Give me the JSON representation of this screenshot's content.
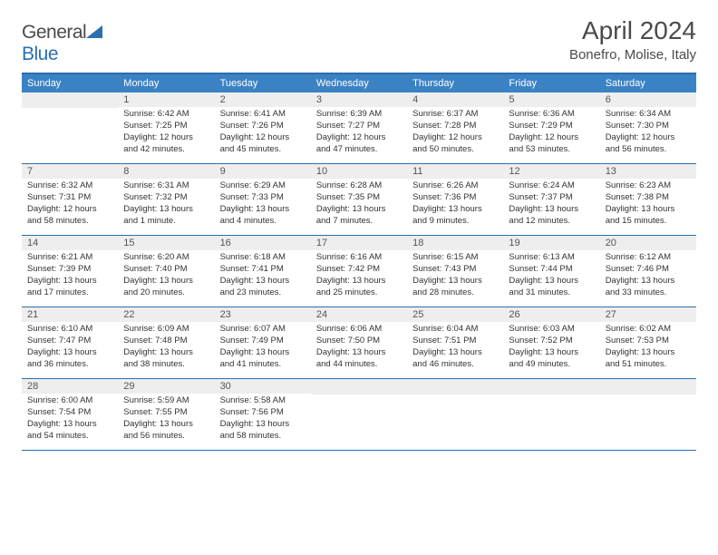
{
  "logo": {
    "text1": "General",
    "text2": "Blue"
  },
  "title": "April 2024",
  "location": "Bonefro, Molise, Italy",
  "colors": {
    "header_bg": "#3b82c4",
    "border": "#2b6fb0",
    "daynum_bg": "#eeeeee",
    "text": "#333333",
    "title_text": "#4a4a4a"
  },
  "weekdays": [
    "Sunday",
    "Monday",
    "Tuesday",
    "Wednesday",
    "Thursday",
    "Friday",
    "Saturday"
  ],
  "weeks": [
    [
      {
        "n": "",
        "sr": "",
        "ss": "",
        "dl": ""
      },
      {
        "n": "1",
        "sr": "Sunrise: 6:42 AM",
        "ss": "Sunset: 7:25 PM",
        "dl": "Daylight: 12 hours and 42 minutes."
      },
      {
        "n": "2",
        "sr": "Sunrise: 6:41 AM",
        "ss": "Sunset: 7:26 PM",
        "dl": "Daylight: 12 hours and 45 minutes."
      },
      {
        "n": "3",
        "sr": "Sunrise: 6:39 AM",
        "ss": "Sunset: 7:27 PM",
        "dl": "Daylight: 12 hours and 47 minutes."
      },
      {
        "n": "4",
        "sr": "Sunrise: 6:37 AM",
        "ss": "Sunset: 7:28 PM",
        "dl": "Daylight: 12 hours and 50 minutes."
      },
      {
        "n": "5",
        "sr": "Sunrise: 6:36 AM",
        "ss": "Sunset: 7:29 PM",
        "dl": "Daylight: 12 hours and 53 minutes."
      },
      {
        "n": "6",
        "sr": "Sunrise: 6:34 AM",
        "ss": "Sunset: 7:30 PM",
        "dl": "Daylight: 12 hours and 56 minutes."
      }
    ],
    [
      {
        "n": "7",
        "sr": "Sunrise: 6:32 AM",
        "ss": "Sunset: 7:31 PM",
        "dl": "Daylight: 12 hours and 58 minutes."
      },
      {
        "n": "8",
        "sr": "Sunrise: 6:31 AM",
        "ss": "Sunset: 7:32 PM",
        "dl": "Daylight: 13 hours and 1 minute."
      },
      {
        "n": "9",
        "sr": "Sunrise: 6:29 AM",
        "ss": "Sunset: 7:33 PM",
        "dl": "Daylight: 13 hours and 4 minutes."
      },
      {
        "n": "10",
        "sr": "Sunrise: 6:28 AM",
        "ss": "Sunset: 7:35 PM",
        "dl": "Daylight: 13 hours and 7 minutes."
      },
      {
        "n": "11",
        "sr": "Sunrise: 6:26 AM",
        "ss": "Sunset: 7:36 PM",
        "dl": "Daylight: 13 hours and 9 minutes."
      },
      {
        "n": "12",
        "sr": "Sunrise: 6:24 AM",
        "ss": "Sunset: 7:37 PM",
        "dl": "Daylight: 13 hours and 12 minutes."
      },
      {
        "n": "13",
        "sr": "Sunrise: 6:23 AM",
        "ss": "Sunset: 7:38 PM",
        "dl": "Daylight: 13 hours and 15 minutes."
      }
    ],
    [
      {
        "n": "14",
        "sr": "Sunrise: 6:21 AM",
        "ss": "Sunset: 7:39 PM",
        "dl": "Daylight: 13 hours and 17 minutes."
      },
      {
        "n": "15",
        "sr": "Sunrise: 6:20 AM",
        "ss": "Sunset: 7:40 PM",
        "dl": "Daylight: 13 hours and 20 minutes."
      },
      {
        "n": "16",
        "sr": "Sunrise: 6:18 AM",
        "ss": "Sunset: 7:41 PM",
        "dl": "Daylight: 13 hours and 23 minutes."
      },
      {
        "n": "17",
        "sr": "Sunrise: 6:16 AM",
        "ss": "Sunset: 7:42 PM",
        "dl": "Daylight: 13 hours and 25 minutes."
      },
      {
        "n": "18",
        "sr": "Sunrise: 6:15 AM",
        "ss": "Sunset: 7:43 PM",
        "dl": "Daylight: 13 hours and 28 minutes."
      },
      {
        "n": "19",
        "sr": "Sunrise: 6:13 AM",
        "ss": "Sunset: 7:44 PM",
        "dl": "Daylight: 13 hours and 31 minutes."
      },
      {
        "n": "20",
        "sr": "Sunrise: 6:12 AM",
        "ss": "Sunset: 7:46 PM",
        "dl": "Daylight: 13 hours and 33 minutes."
      }
    ],
    [
      {
        "n": "21",
        "sr": "Sunrise: 6:10 AM",
        "ss": "Sunset: 7:47 PM",
        "dl": "Daylight: 13 hours and 36 minutes."
      },
      {
        "n": "22",
        "sr": "Sunrise: 6:09 AM",
        "ss": "Sunset: 7:48 PM",
        "dl": "Daylight: 13 hours and 38 minutes."
      },
      {
        "n": "23",
        "sr": "Sunrise: 6:07 AM",
        "ss": "Sunset: 7:49 PM",
        "dl": "Daylight: 13 hours and 41 minutes."
      },
      {
        "n": "24",
        "sr": "Sunrise: 6:06 AM",
        "ss": "Sunset: 7:50 PM",
        "dl": "Daylight: 13 hours and 44 minutes."
      },
      {
        "n": "25",
        "sr": "Sunrise: 6:04 AM",
        "ss": "Sunset: 7:51 PM",
        "dl": "Daylight: 13 hours and 46 minutes."
      },
      {
        "n": "26",
        "sr": "Sunrise: 6:03 AM",
        "ss": "Sunset: 7:52 PM",
        "dl": "Daylight: 13 hours and 49 minutes."
      },
      {
        "n": "27",
        "sr": "Sunrise: 6:02 AM",
        "ss": "Sunset: 7:53 PM",
        "dl": "Daylight: 13 hours and 51 minutes."
      }
    ],
    [
      {
        "n": "28",
        "sr": "Sunrise: 6:00 AM",
        "ss": "Sunset: 7:54 PM",
        "dl": "Daylight: 13 hours and 54 minutes."
      },
      {
        "n": "29",
        "sr": "Sunrise: 5:59 AM",
        "ss": "Sunset: 7:55 PM",
        "dl": "Daylight: 13 hours and 56 minutes."
      },
      {
        "n": "30",
        "sr": "Sunrise: 5:58 AM",
        "ss": "Sunset: 7:56 PM",
        "dl": "Daylight: 13 hours and 58 minutes."
      },
      {
        "n": "",
        "sr": "",
        "ss": "",
        "dl": ""
      },
      {
        "n": "",
        "sr": "",
        "ss": "",
        "dl": ""
      },
      {
        "n": "",
        "sr": "",
        "ss": "",
        "dl": ""
      },
      {
        "n": "",
        "sr": "",
        "ss": "",
        "dl": ""
      }
    ]
  ]
}
